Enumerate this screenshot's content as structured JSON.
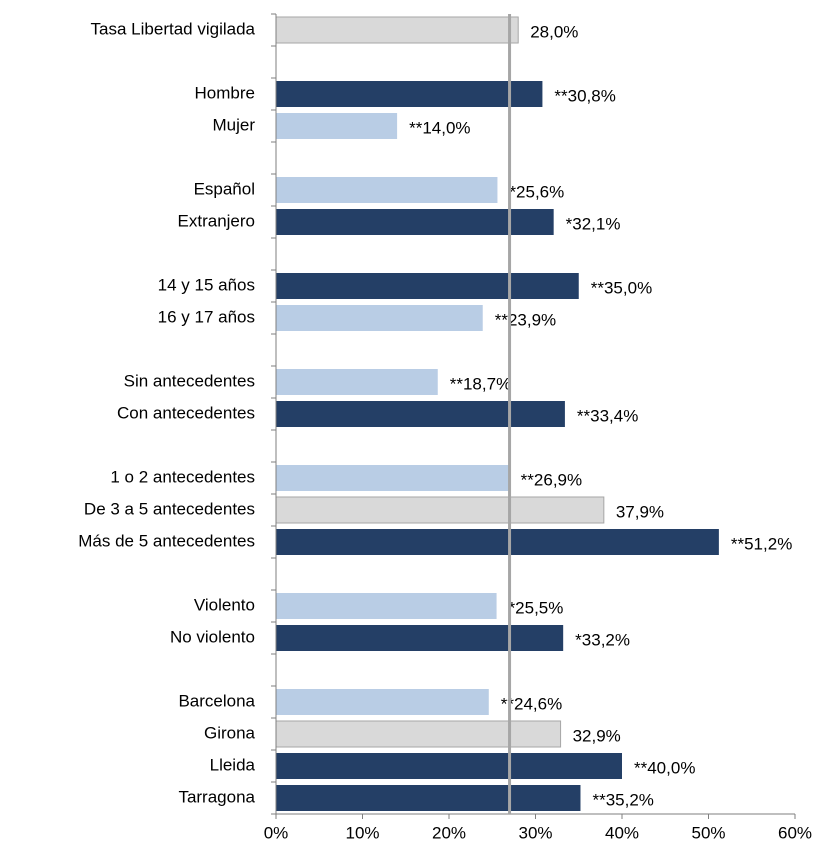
{
  "chart_data": {
    "type": "bar",
    "orientation": "horizontal",
    "categories": [
      "Tasa Libertad vigilada",
      null,
      "Hombre",
      "Mujer",
      null,
      "Español",
      "Extranjero",
      null,
      "14 y 15 años",
      "16 y 17 años",
      null,
      "Sin antecedentes",
      "Con antecedentes",
      null,
      "1 o 2 antecedentes",
      "De 3 a 5 antecedentes",
      "Más de 5 antecedentes",
      null,
      "Violento",
      "No violento",
      null,
      "Barcelona",
      "Girona",
      "Lleida",
      "Tarragona"
    ],
    "values": [
      28.0,
      null,
      30.8,
      14.0,
      null,
      25.6,
      32.1,
      null,
      35.0,
      23.9,
      null,
      18.7,
      33.4,
      null,
      26.9,
      37.9,
      51.2,
      null,
      25.5,
      33.2,
      null,
      24.6,
      32.9,
      40.0,
      35.2
    ],
    "value_labels": [
      "28,0%",
      null,
      "**30,8%",
      "**14,0%",
      null,
      "*25,6%",
      "*32,1%",
      null,
      "**35,0%",
      "**23,9%",
      null,
      "**18,7%",
      "**33,4%",
      null,
      "**26,9%",
      "37,9%",
      "**51,2%",
      null,
      "*25,5%",
      "*33,2%",
      null,
      "**24,6%",
      "32,9%",
      "**40,0%",
      "**35,2%"
    ],
    "colors": [
      "#d9d9d9",
      null,
      "#243f66",
      "#b9cde5",
      null,
      "#b9cde5",
      "#243f66",
      null,
      "#243f66",
      "#b9cde5",
      null,
      "#b9cde5",
      "#243f66",
      null,
      "#b9cde5",
      "#d9d9d9",
      "#243f66",
      null,
      "#b9cde5",
      "#243f66",
      null,
      "#b9cde5",
      "#d9d9d9",
      "#243f66",
      "#243f66"
    ],
    "reference_line": 27,
    "xlim": [
      0,
      60
    ],
    "xticks": [
      {
        "value": 0,
        "label": "0%"
      },
      {
        "value": 10,
        "label": "10%"
      },
      {
        "value": 20,
        "label": "20%"
      },
      {
        "value": 30,
        "label": "30%"
      },
      {
        "value": 40,
        "label": "40%"
      },
      {
        "value": 50,
        "label": "50%"
      },
      {
        "value": 60,
        "label": "60%"
      }
    ]
  }
}
